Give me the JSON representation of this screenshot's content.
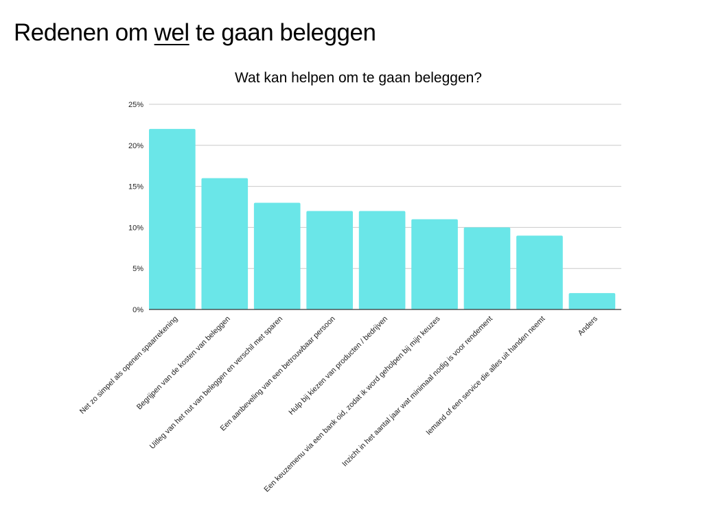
{
  "page": {
    "title_before": "Redenen om ",
    "title_emphasis": "wel",
    "title_after": " te gaan beleggen"
  },
  "chart_data": {
    "type": "bar",
    "title": "Wat kan helpen om te gaan beleggen?",
    "xlabel": "",
    "ylabel": "",
    "ylim": [
      0,
      25
    ],
    "yticks": [
      0,
      5,
      10,
      15,
      20,
      25
    ],
    "ytick_labels": [
      "0%",
      "5%",
      "10%",
      "15%",
      "20%",
      "25%"
    ],
    "grid": true,
    "bar_color": "#6ae6e8",
    "categories": [
      "Net zo simpel als openen spaarrekening",
      "Begrijpen van de kosten van beleggen",
      "Uitleg van het nut van beleggen en verschil met sparen",
      "Een aanbeveling van een betrouwbaar persoon",
      "Hulp bij kiezen van producten / bedrijven",
      "Een keuzemenu via een bank oid, zodat ik word geholpen bij mijn keuzes",
      "Inzicht in het aantal jaar wat minimaal nodig is voor rendement",
      "Iemand of een service die alles uit handen neemt",
      "Anders"
    ],
    "values": [
      22,
      16,
      13,
      12,
      12,
      11,
      10,
      9,
      2
    ]
  }
}
